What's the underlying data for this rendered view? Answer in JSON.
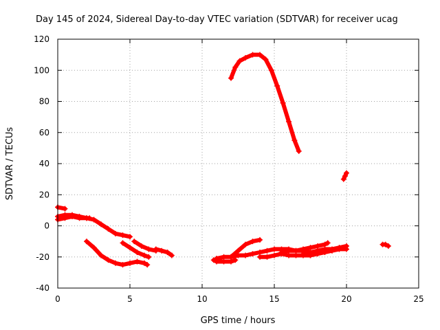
{
  "chart_data": {
    "type": "scatter",
    "title": "Day 145 of 2024, Sidereal Day-to-day VTEC variation (SDTVAR) for receiver ucag",
    "xlabel": "GPS time / hours",
    "ylabel": "SDTVAR / TECUs",
    "xlim": [
      0,
      25
    ],
    "ylim": [
      -40,
      120
    ],
    "xticks": [
      0,
      5,
      10,
      15,
      20,
      25
    ],
    "yticks": [
      -40,
      -20,
      0,
      20,
      40,
      60,
      80,
      100,
      120
    ],
    "xtick_labels": [
      "0",
      "5",
      "10",
      "15",
      "20",
      "25"
    ],
    "ytick_labels": [
      "-40",
      "-20",
      "0",
      "20",
      "40",
      "60",
      "80",
      "100",
      "120"
    ],
    "grid": true,
    "marker": "plus",
    "color": "#ff0000",
    "series": [
      {
        "name": "s1",
        "x": [
          0.0,
          0.5
        ],
        "y": [
          12,
          11
        ]
      },
      {
        "name": "s2",
        "x": [
          0.0,
          0.5,
          1.0,
          1.5,
          2.0,
          2.5,
          3.0,
          3.5,
          4.0,
          4.5,
          5.0
        ],
        "y": [
          4,
          5,
          6,
          5,
          5,
          4,
          1,
          -2,
          -5,
          -6,
          -7
        ]
      },
      {
        "name": "s3",
        "x": [
          0.0,
          0.5,
          1.0,
          1.5,
          2.0,
          2.2
        ],
        "y": [
          6,
          7,
          7,
          6,
          5,
          5
        ]
      },
      {
        "name": "s4",
        "x": [
          2.0,
          2.5,
          3.0,
          3.5,
          4.0,
          4.5,
          5.0,
          5.5,
          6.0,
          6.2
        ],
        "y": [
          -10,
          -14,
          -19,
          -22,
          -24,
          -25,
          -24,
          -23,
          -24,
          -25
        ]
      },
      {
        "name": "s5",
        "x": [
          4.5,
          5.0,
          5.5,
          6.0,
          6.3
        ],
        "y": [
          -11,
          -14,
          -17,
          -19,
          -20
        ]
      },
      {
        "name": "s6",
        "x": [
          5.3,
          5.8,
          6.3,
          6.8
        ],
        "y": [
          -10,
          -13,
          -15,
          -16
        ]
      },
      {
        "name": "s7",
        "x": [
          6.8,
          7.2,
          7.6,
          7.9
        ],
        "y": [
          -15,
          -16,
          -17,
          -19
        ]
      },
      {
        "name": "s8",
        "x": [
          10.8,
          11.0,
          11.5,
          12.0,
          12.3
        ],
        "y": [
          -22,
          -23,
          -23,
          -23,
          -22
        ]
      },
      {
        "name": "s9",
        "x": [
          11.0,
          11.5,
          12.0,
          12.5,
          13.0,
          13.5,
          14.0
        ],
        "y": [
          -21,
          -20,
          -20,
          -16,
          -12,
          -10,
          -9
        ]
      },
      {
        "name": "s10",
        "x": [
          12.0,
          12.3,
          12.6,
          13.0,
          13.5,
          14.0,
          14.4,
          14.8,
          15.2,
          15.6,
          16.0,
          16.4,
          16.7
        ],
        "y": [
          95,
          102,
          106,
          108,
          110,
          110,
          107,
          100,
          90,
          79,
          67,
          55,
          48
        ]
      },
      {
        "name": "s11",
        "x": [
          12.0,
          12.5,
          13.0,
          13.5,
          14.0,
          14.5,
          15.0,
          15.5,
          16.0,
          16.5,
          17.0,
          17.5
        ],
        "y": [
          -20,
          -19,
          -19,
          -18,
          -17,
          -16,
          -15,
          -15,
          -15,
          -16,
          -16,
          -17
        ]
      },
      {
        "name": "s12",
        "x": [
          14.0,
          14.5,
          15.0,
          15.5,
          16.0,
          16.5,
          17.0,
          17.5
        ],
        "y": [
          -20,
          -20,
          -19,
          -18,
          -19,
          -19,
          -19,
          -19
        ]
      },
      {
        "name": "s13",
        "x": [
          15.5,
          16.0,
          16.5,
          17.0,
          17.5,
          18.0,
          18.5,
          18.7
        ],
        "y": [
          -17,
          -16,
          -16,
          -15,
          -14,
          -13,
          -12,
          -11
        ]
      },
      {
        "name": "s14",
        "x": [
          17.0,
          17.5,
          18.0,
          18.5,
          19.0,
          19.5,
          20.0
        ],
        "y": [
          -18,
          -17,
          -16,
          -15,
          -15,
          -14,
          -13
        ]
      },
      {
        "name": "s15",
        "x": [
          17.5,
          18.0,
          18.5,
          19.0,
          19.5,
          20.0
        ],
        "y": [
          -19,
          -18,
          -17,
          -16,
          -15,
          -15
        ]
      },
      {
        "name": "s16",
        "x": [
          19.8,
          19.9,
          20.0
        ],
        "y": [
          30,
          32,
          34
        ]
      },
      {
        "name": "s17",
        "x": [
          22.5,
          22.7,
          22.9
        ],
        "y": [
          -12,
          -12,
          -13
        ]
      }
    ]
  }
}
